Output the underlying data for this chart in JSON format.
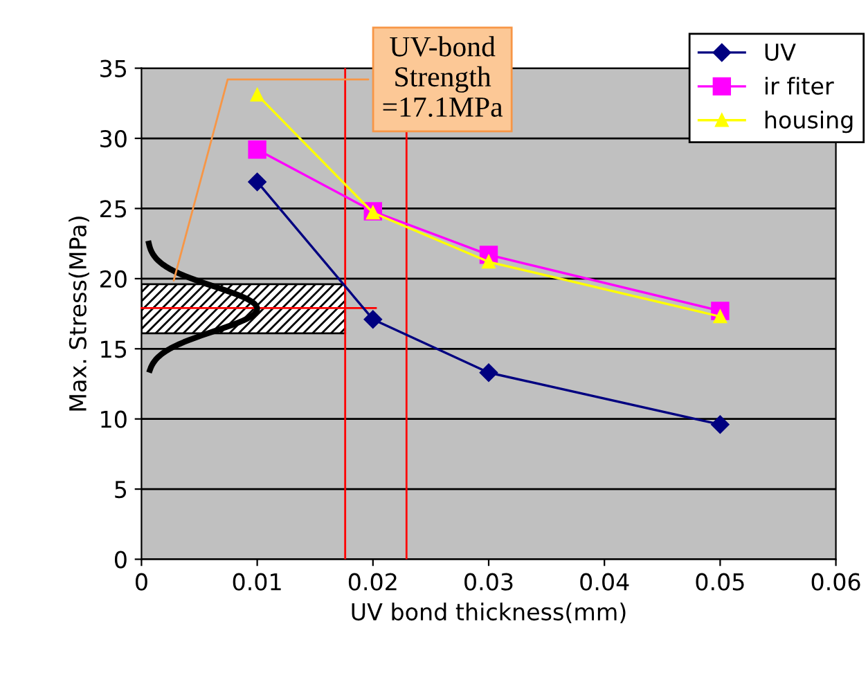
{
  "chart_data": {
    "type": "line",
    "xlabel": "UV bond thickness(mm)",
    "ylabel": "Max. Stress(MPa)",
    "x": [
      0.01,
      0.02,
      0.03,
      0.05
    ],
    "series": [
      {
        "name": "UV",
        "color": "#000080",
        "marker": "diamond",
        "values": [
          26.9,
          17.1,
          13.3,
          9.6
        ]
      },
      {
        "name": "ir fiter",
        "color": "#ff00ff",
        "marker": "square",
        "values": [
          29.2,
          24.8,
          21.7,
          17.7
        ]
      },
      {
        "name": "housing",
        "color": "#ffff00",
        "marker": "triangle",
        "values": [
          33.1,
          24.7,
          21.2,
          17.3
        ]
      }
    ],
    "xlim": [
      0,
      0.06
    ],
    "xticks": [
      0,
      0.01,
      0.02,
      0.03,
      0.04,
      0.05,
      0.06
    ],
    "ylim": [
      0,
      35
    ],
    "yticks": [
      0,
      5,
      10,
      15,
      20,
      25,
      30,
      35
    ],
    "grid": "y",
    "legend": "top right",
    "ref_lines": [
      {
        "axis": "x",
        "value": 0.0176,
        "color": "#ff0000"
      },
      {
        "axis": "x",
        "value": 0.0229,
        "color": "#ff0000"
      },
      {
        "axis": "y",
        "value": 17.9,
        "color": "#ff0000"
      }
    ],
    "bands": [
      {
        "axis": "y",
        "from": 16.1,
        "to": 19.6,
        "color": "#000000"
      }
    ],
    "annotations": [
      {
        "text": "UV-bond\nStrength\n=17.1MPa",
        "x": 0.0027,
        "y": 19.6
      }
    ]
  }
}
